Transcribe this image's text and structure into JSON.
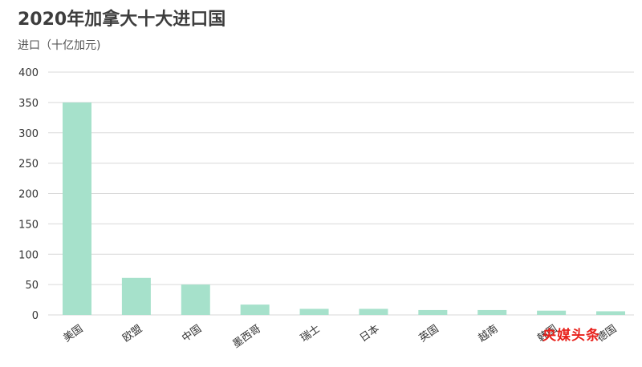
{
  "chart_data": {
    "type": "bar",
    "title": "2020年加拿大十大进口国",
    "ylabel": "进口（十亿加元)",
    "xlabel": "",
    "categories": [
      "美国",
      "欧盟",
      "中国",
      "墨西哥",
      "瑞士",
      "日本",
      "英国",
      "越南",
      "韩国",
      "德国"
    ],
    "values": [
      350,
      61,
      50,
      17,
      10,
      10,
      8,
      8,
      7,
      6
    ],
    "ylim": [
      0,
      400
    ],
    "yticks": [
      0,
      50,
      100,
      150,
      200,
      250,
      300,
      350,
      400
    ],
    "grid": true,
    "bar_color": "#a6e1cb",
    "grid_color": "#d9d9d9"
  },
  "watermark": "央媒头条"
}
